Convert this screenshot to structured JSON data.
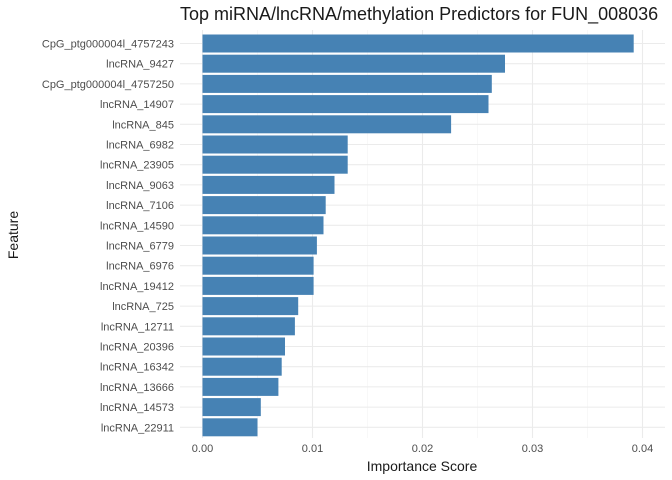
{
  "chart_data": {
    "type": "bar",
    "orientation": "horizontal",
    "title": "Top miRNA/lncRNA/methylation Predictors for FUN_008036",
    "xlabel": "Importance Score",
    "ylabel": "Feature",
    "xlim": [
      0.0,
      0.04
    ],
    "x_ticks": [
      "0.00",
      "0.01",
      "0.02",
      "0.03",
      "0.04"
    ],
    "x_tick_values": [
      0.0,
      0.01,
      0.02,
      0.03,
      0.04
    ],
    "grid": true,
    "bar_color": "#4682B4",
    "categories": [
      "CpG_ptg000004l_4757243",
      "lncRNA_9427",
      "CpG_ptg000004l_4757250",
      "lncRNA_14907",
      "lncRNA_845",
      "lncRNA_6982",
      "lncRNA_23905",
      "lncRNA_9063",
      "lncRNA_7106",
      "lncRNA_14590",
      "lncRNA_6779",
      "lncRNA_6976",
      "lncRNA_19412",
      "lncRNA_725",
      "lncRNA_12711",
      "lncRNA_20396",
      "lncRNA_16342",
      "lncRNA_13666",
      "lncRNA_14573",
      "lncRNA_22911"
    ],
    "values": [
      0.0392,
      0.0275,
      0.0263,
      0.026,
      0.0226,
      0.0132,
      0.0132,
      0.012,
      0.0112,
      0.011,
      0.0104,
      0.0101,
      0.0101,
      0.0087,
      0.0084,
      0.0075,
      0.0072,
      0.0069,
      0.0053,
      0.005
    ]
  }
}
